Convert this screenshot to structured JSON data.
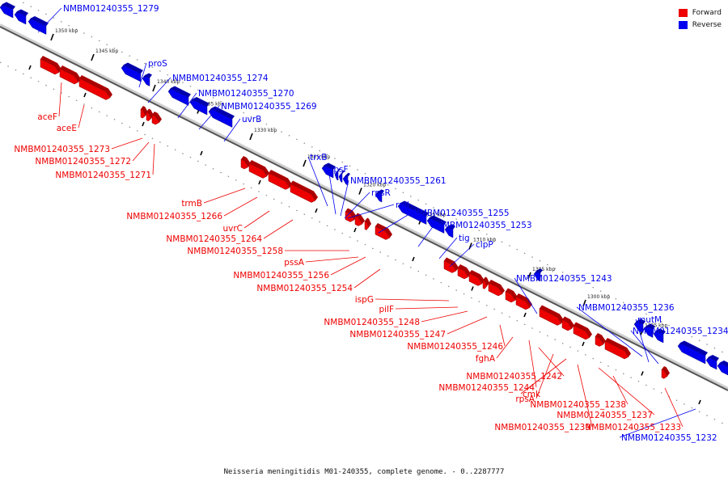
{
  "legend": {
    "forward": {
      "label": "Forward",
      "color": "#ee0000"
    },
    "reverse": {
      "label": "Reverse",
      "color": "#0000ee"
    }
  },
  "caption": "Neisseria meningitidis M01-240355, complete genome. - 0..2287777",
  "ticks": [
    "1350 kbp",
    "1345 kbp",
    "1340 kbp",
    "1335 kbp",
    "1330 kbp",
    "1325 kbp",
    "1320 kbp",
    "1315 kbp",
    "1310 kbp",
    "1305 kbp",
    "1300 kbp",
    "1295 kbp"
  ],
  "genes": {
    "reverse": [
      {
        "label": "NMBM01240355_1279"
      },
      {
        "label": "proS"
      },
      {
        "label": "NMBM01240355_1274"
      },
      {
        "label": "NMBM01240355_1270"
      },
      {
        "label": "NMBM01240355_1269"
      },
      {
        "label": "uvrB"
      },
      {
        "label": "trxB"
      },
      {
        "label": "rpsF"
      },
      {
        "label": "NMBM01240355_1261"
      },
      {
        "label": "rpsR"
      },
      {
        "label": "rplI"
      },
      {
        "label": "NMBM01240355_1255"
      },
      {
        "label": "NMBM01240355_1253"
      },
      {
        "label": "tig"
      },
      {
        "label": "clpP"
      },
      {
        "label": "NMBM01240355_1243"
      },
      {
        "label": "NMBM01240355_1236"
      },
      {
        "label": "mutM"
      },
      {
        "label": "NMBM01240355_1234"
      },
      {
        "label": "NMBM01240355_1232"
      }
    ],
    "forward": [
      {
        "label": "aceF"
      },
      {
        "label": "aceE"
      },
      {
        "label": "NMBM01240355_1273"
      },
      {
        "label": "NMBM01240355_1272"
      },
      {
        "label": "NMBM01240355_1271"
      },
      {
        "label": "trmB"
      },
      {
        "label": "NMBM01240355_1266"
      },
      {
        "label": "uvrC"
      },
      {
        "label": "NMBM01240355_1264"
      },
      {
        "label": "NMBM01240355_1258"
      },
      {
        "label": "pssA"
      },
      {
        "label": "NMBM01240355_1256"
      },
      {
        "label": "NMBM01240355_1254"
      },
      {
        "label": "ispG"
      },
      {
        "label": "pilF"
      },
      {
        "label": "NMBM01240355_1248"
      },
      {
        "label": "NMBM01240355_1247"
      },
      {
        "label": "NMBM01240355_1246"
      },
      {
        "label": "fghA"
      },
      {
        "label": "NMBM01240355_1242"
      },
      {
        "label": "NMBM01240355_1244"
      },
      {
        "label": "rpsA"
      },
      {
        "label": "cmk"
      },
      {
        "label": "NMBM01240355_1238"
      },
      {
        "label": "NMBM01240355_1237"
      },
      {
        "label": "NMBM01240355_1239"
      },
      {
        "label": "NMBM01240355_1233"
      }
    ]
  }
}
